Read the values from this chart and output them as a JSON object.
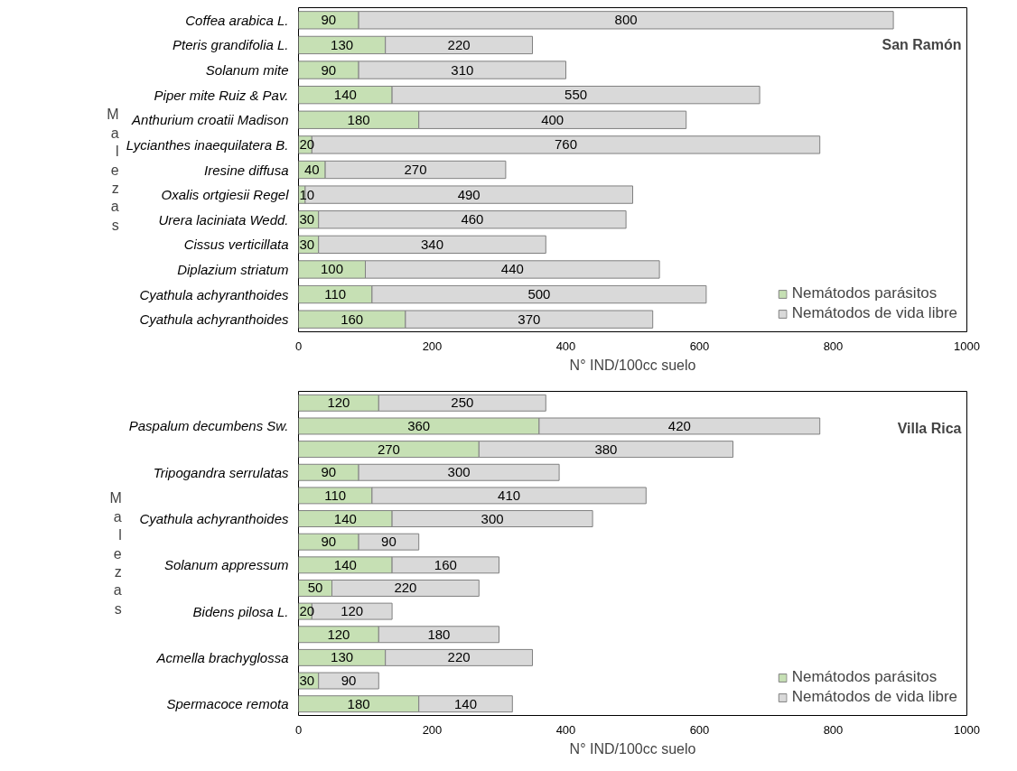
{
  "chart_data": [
    {
      "type": "bar",
      "orientation": "horizontal",
      "stacked": true,
      "title": "San Ramón",
      "xlabel": "N° IND/100cc suelo",
      "ylabel": "Malezas",
      "legend": "bottom right",
      "data_labels": true,
      "grid": false,
      "xlim": [
        0,
        1000
      ],
      "xticks": [
        0,
        200,
        400,
        600,
        800,
        1000
      ],
      "categories": [
        "Coffea arabica L.",
        "Pteris grandifolia L.",
        "Solanum mite",
        "Piper mite Ruiz & Pav.",
        "Anthurium croatii Madison",
        "Lycianthes inaequilatera B.",
        "Iresine diffusa",
        "Oxalis ortgiesii Regel",
        "Urera laciniata Wedd.",
        "Cissus verticillata",
        "Diplazium striatum",
        "Cyathula achyranthoides",
        "Cyathula achyranthoides"
      ],
      "series": [
        {
          "name": "Nemátodos parásitos",
          "color": "#c6e0b4",
          "values": [
            90,
            130,
            90,
            140,
            180,
            20,
            40,
            10,
            30,
            30,
            100,
            110,
            160
          ]
        },
        {
          "name": "Nemátodos de vida libre",
          "color": "#d9d9d9",
          "values": [
            800,
            220,
            310,
            550,
            400,
            760,
            270,
            490,
            460,
            340,
            440,
            500,
            370
          ]
        }
      ]
    },
    {
      "type": "bar",
      "orientation": "horizontal",
      "stacked": true,
      "title": "Villa Rica",
      "xlabel": "N° IND/100cc suelo",
      "ylabel": "Malezas",
      "legend": "bottom right",
      "data_labels": true,
      "grid": false,
      "xlim": [
        0,
        1000
      ],
      "xticks": [
        0,
        200,
        400,
        600,
        800,
        1000
      ],
      "categories": [
        null,
        "Paspalum decumbens Sw.",
        null,
        "Tripogandra serrulatas",
        null,
        "Cyathula achyranthoides",
        null,
        "Solanum appressum",
        null,
        "Bidens pilosa L.",
        null,
        "Acmella brachyglossa",
        null,
        "Spermacoce remota"
      ],
      "series": [
        {
          "name": "Nemátodos parásitos",
          "color": "#c6e0b4",
          "values": [
            120,
            360,
            270,
            90,
            110,
            140,
            90,
            140,
            50,
            20,
            120,
            130,
            30,
            180
          ]
        },
        {
          "name": "Nemátodos de vida libre",
          "color": "#d9d9d9",
          "values": [
            250,
            420,
            380,
            300,
            410,
            300,
            90,
            160,
            220,
            120,
            180,
            220,
            90,
            140
          ]
        }
      ]
    }
  ]
}
